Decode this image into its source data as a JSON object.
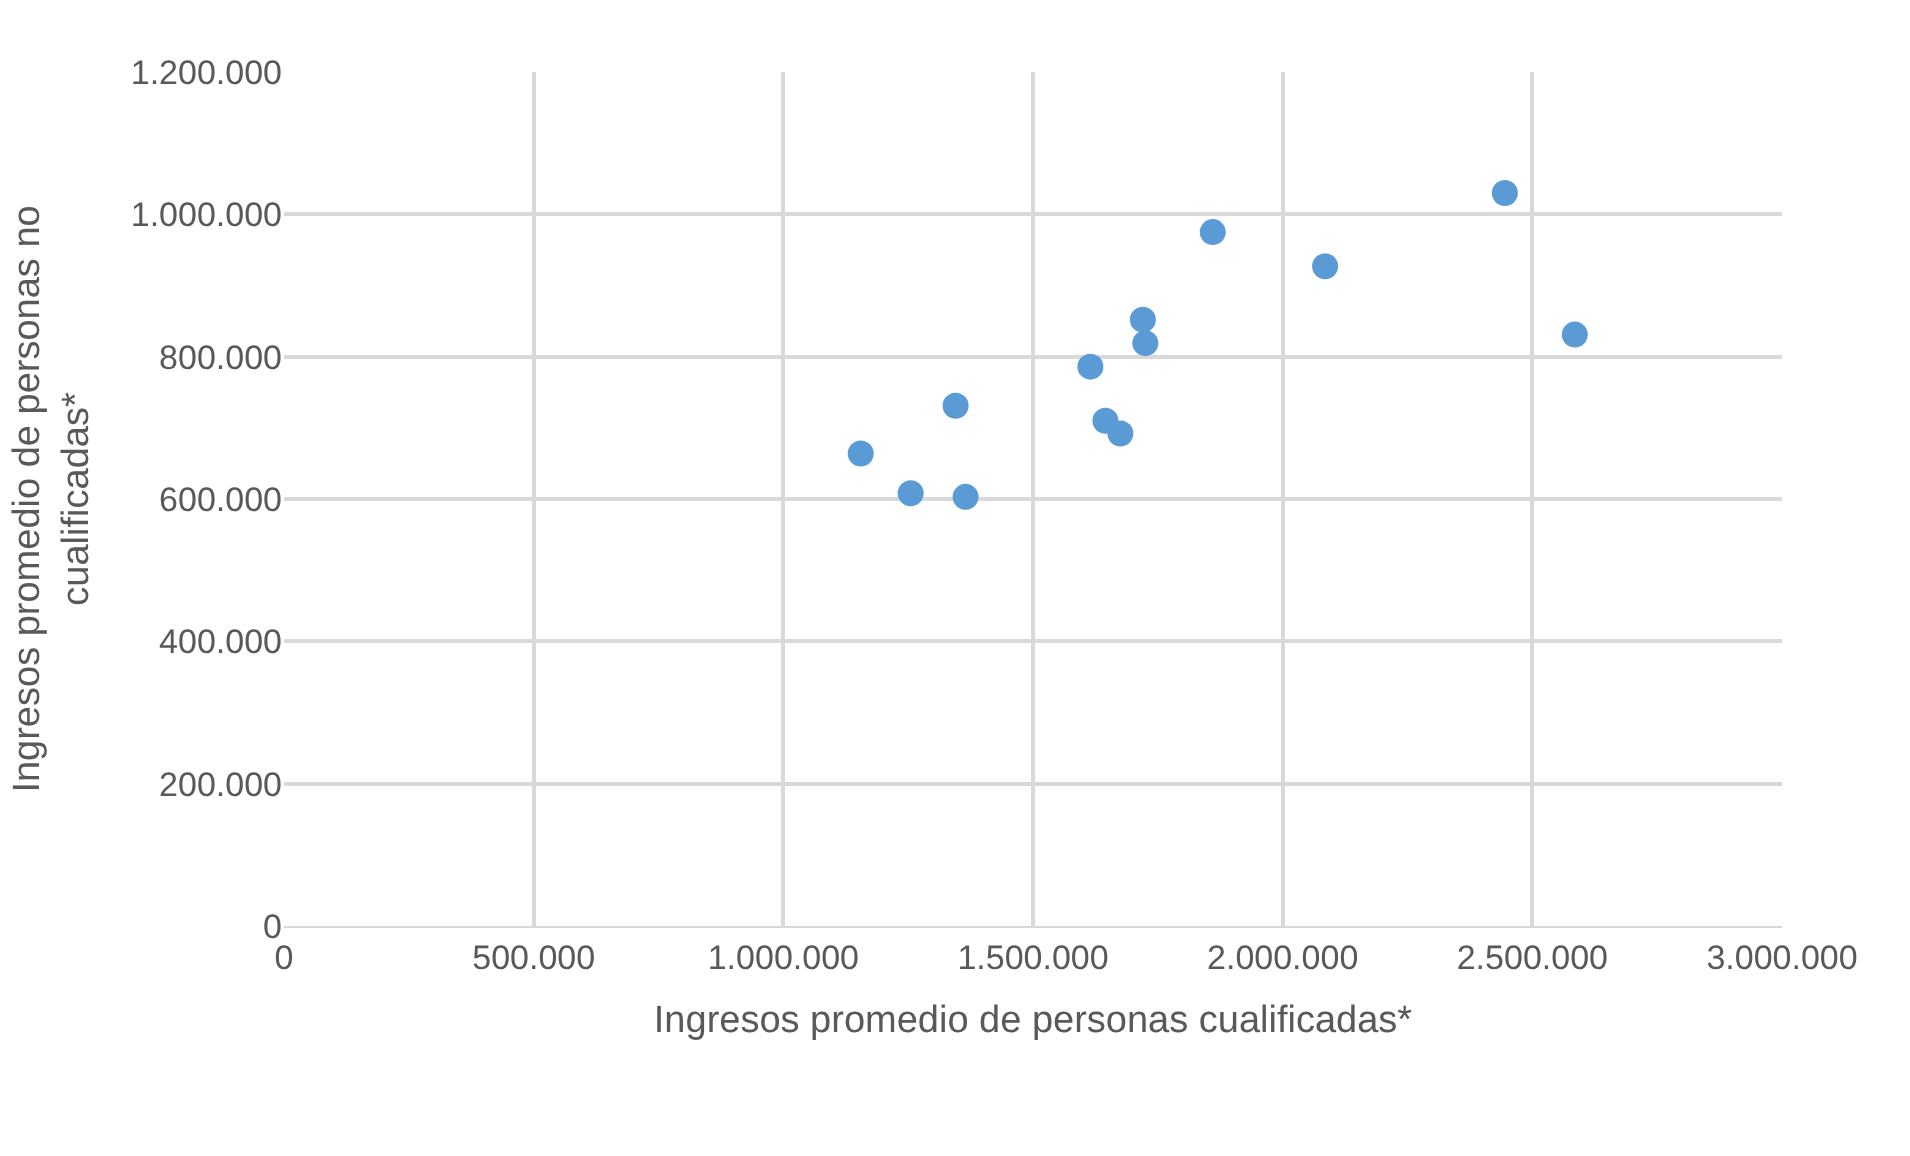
{
  "chart_data": {
    "type": "scatter",
    "xlabel": "Ingresos promedio de personas cualificadas*",
    "ylabel": "Ingresos promedio de personas no cualificadas*",
    "x": [
      1155000,
      1255000,
      1365000,
      1345000,
      1615000,
      1645000,
      1675000,
      1720000,
      1725000,
      1860000,
      2085000,
      2445000,
      2585000
    ],
    "series": [
      {
        "color": "#5b9bd5",
        "values": [
          664000,
          608000,
          603000,
          731000,
          786000,
          710000,
          692000,
          852000,
          819000,
          975000,
          927000,
          1030000,
          831000
        ]
      }
    ],
    "xlim": [
      0,
      3000000
    ],
    "xticks": [
      0,
      {
        "value": 500000,
        "label": "500.000"
      },
      {
        "value": 1000000,
        "label": "1.000.000"
      },
      {
        "value": 1500000,
        "label": "1.500.000"
      },
      {
        "value": 2000000,
        "label": "2.000.000"
      },
      {
        "value": 2500000,
        "label": "2.500.000"
      },
      {
        "value": 3000000,
        "label": "3.000.000"
      }
    ],
    "ylim": [
      0,
      1200000
    ],
    "yticks": [
      0,
      {
        "value": 200000,
        "label": "200.000"
      },
      {
        "value": 400000,
        "label": "400.000"
      },
      {
        "value": 600000,
        "label": "600.000"
      },
      {
        "value": 800000,
        "label": "800.000"
      },
      {
        "value": 1000000,
        "label": "1.000.000"
      },
      {
        "value": 1200000,
        "label": "1.200.000"
      }
    ],
    "grid": true,
    "marker": "circle"
  }
}
